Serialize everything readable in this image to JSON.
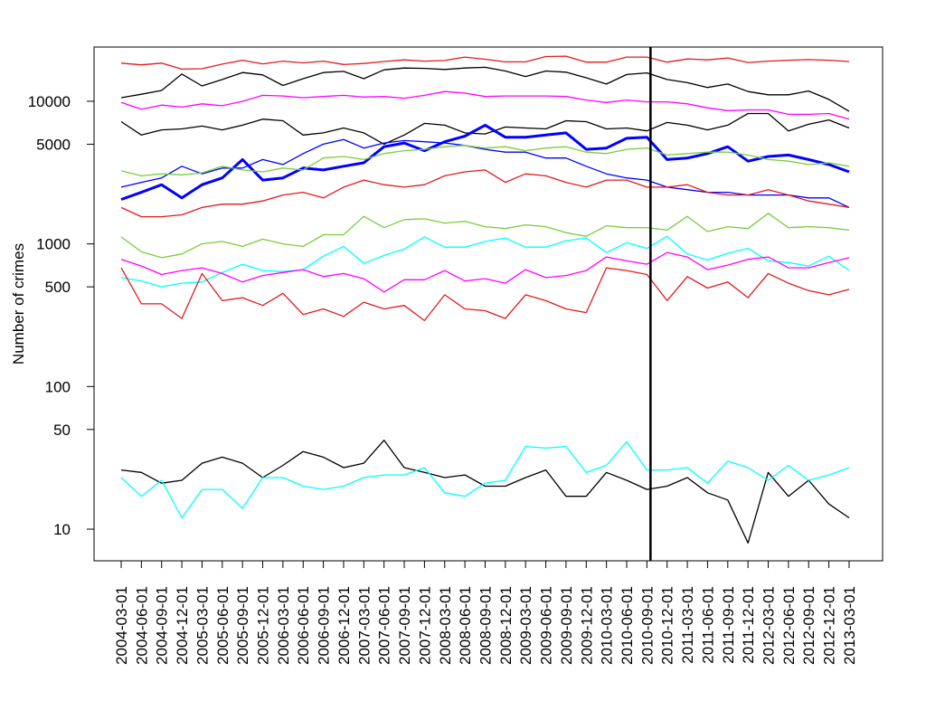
{
  "chart_data": {
    "type": "line",
    "title": "",
    "xlabel": "",
    "ylabel": "Number of crimes",
    "y_scale": "log",
    "ylim": [
      6,
      24000
    ],
    "y_ticks": [
      10,
      50,
      100,
      500,
      1000,
      5000,
      10000
    ],
    "grid": false,
    "legend": "none",
    "vertical_line_at": "2010-09-01",
    "x": [
      "2004-03-01",
      "2004-06-01",
      "2004-09-01",
      "2004-12-01",
      "2005-03-01",
      "2005-06-01",
      "2005-09-01",
      "2005-12-01",
      "2006-03-01",
      "2006-06-01",
      "2006-09-01",
      "2006-12-01",
      "2007-03-01",
      "2007-06-01",
      "2007-09-01",
      "2007-12-01",
      "2008-03-01",
      "2008-06-01",
      "2008-09-01",
      "2008-12-01",
      "2009-03-01",
      "2009-06-01",
      "2009-09-01",
      "2009-12-01",
      "2010-03-01",
      "2010-06-01",
      "2010-09-01",
      "2010-12-01",
      "2011-03-01",
      "2011-06-01",
      "2011-09-01",
      "2011-12-01",
      "2012-03-01",
      "2012-06-01",
      "2012-09-01",
      "2012-12-01",
      "2013-03-01"
    ],
    "series": [
      {
        "color": "#e31a1c",
        "width": 1.3,
        "values": [
          18500,
          18000,
          18500,
          16800,
          16900,
          18200,
          19400,
          18300,
          19100,
          18600,
          19100,
          18100,
          18400,
          19000,
          19500,
          19100,
          19300,
          20400,
          19700,
          18900,
          18900,
          20600,
          20700,
          18800,
          18800,
          20400,
          20400,
          18800,
          19800,
          19500,
          20100,
          18700,
          19100,
          19400,
          19600,
          19400,
          19000
        ]
      },
      {
        "color": "#000000",
        "width": 1.3,
        "values": [
          10600,
          11200,
          11900,
          15500,
          12800,
          14200,
          15900,
          15300,
          12900,
          14400,
          15900,
          16200,
          14400,
          16600,
          17100,
          17000,
          16700,
          17100,
          17300,
          16300,
          14900,
          16300,
          16000,
          14600,
          13200,
          15400,
          15800,
          14200,
          13500,
          12500,
          13200,
          11700,
          11100,
          11100,
          11800,
          10300,
          8500
        ]
      },
      {
        "color": "#ff00ff",
        "width": 1.3,
        "values": [
          9800,
          8800,
          9400,
          9100,
          9600,
          9300,
          10000,
          11000,
          10900,
          10600,
          10800,
          11000,
          10700,
          10800,
          10500,
          11000,
          11700,
          11400,
          10800,
          10900,
          10900,
          10900,
          10800,
          10200,
          9800,
          10200,
          9900,
          9900,
          9600,
          9000,
          8600,
          8700,
          8700,
          8100,
          8100,
          8200,
          7500
        ]
      },
      {
        "color": "#000000",
        "width": 1.3,
        "values": [
          7200,
          5800,
          6300,
          6400,
          6700,
          6300,
          6800,
          7500,
          7300,
          5800,
          6000,
          6500,
          6000,
          5000,
          5800,
          7000,
          6800,
          6000,
          5900,
          6600,
          6500,
          6400,
          7300,
          7200,
          6400,
          6500,
          6200,
          7100,
          6800,
          6300,
          6800,
          8200,
          8200,
          6200,
          6900,
          7400,
          6500
        ]
      },
      {
        "color": "#0000ff",
        "width": 3,
        "values": [
          2050,
          2300,
          2600,
          2100,
          2600,
          2900,
          3900,
          2800,
          2900,
          3400,
          3300,
          3500,
          3700,
          4800,
          5100,
          4500,
          5200,
          5700,
          6800,
          5600,
          5600,
          5800,
          6000,
          4600,
          4700,
          5500,
          5600,
          3900,
          4000,
          4300,
          4800,
          3800,
          4100,
          4200,
          3900,
          3600,
          3200
        ]
      },
      {
        "color": "#0000ff",
        "width": 1.3,
        "values": [
          2500,
          2700,
          2900,
          3500,
          3100,
          3400,
          3400,
          3900,
          3600,
          4300,
          5000,
          5400,
          4700,
          5100,
          5300,
          5200,
          5100,
          4900,
          4600,
          4400,
          4400,
          4000,
          4000,
          3500,
          3100,
          2900,
          2800,
          2500,
          2400,
          2300,
          2300,
          2200,
          2200,
          2200,
          2100,
          2100,
          1800
        ]
      },
      {
        "color": "#7ccd3c",
        "width": 1.3,
        "values": [
          3250,
          3000,
          3100,
          3050,
          3150,
          3500,
          3300,
          3200,
          3400,
          3300,
          4000,
          4100,
          3900,
          4300,
          4500,
          4600,
          4800,
          4900,
          4700,
          4800,
          4500,
          4700,
          4800,
          4400,
          4300,
          4600,
          4700,
          4200,
          4300,
          4400,
          4400,
          4200,
          3900,
          3800,
          3600,
          3700,
          3500
        ]
      },
      {
        "color": "#e31a1c",
        "width": 1.3,
        "values": [
          1800,
          1550,
          1550,
          1600,
          1800,
          1900,
          1900,
          2000,
          2200,
          2300,
          2100,
          2500,
          2800,
          2600,
          2500,
          2600,
          3000,
          3200,
          3300,
          2700,
          3100,
          3000,
          2700,
          2500,
          2800,
          2800,
          2500,
          2500,
          2600,
          2300,
          2200,
          2200,
          2400,
          2200,
          2000,
          1900,
          1800
        ]
      },
      {
        "color": "#7ccd3c",
        "width": 1.3,
        "values": [
          1120,
          880,
          800,
          850,
          1000,
          1040,
          960,
          1080,
          1000,
          960,
          1160,
          1160,
          1560,
          1300,
          1480,
          1500,
          1400,
          1440,
          1320,
          1280,
          1360,
          1320,
          1200,
          1130,
          1340,
          1300,
          1300,
          1250,
          1560,
          1220,
          1320,
          1280,
          1640,
          1300,
          1320,
          1300,
          1250
        ]
      },
      {
        "color": "#00ffff",
        "width": 1.3,
        "values": [
          580,
          550,
          500,
          530,
          540,
          630,
          720,
          650,
          640,
          660,
          820,
          960,
          730,
          830,
          920,
          1120,
          950,
          950,
          1040,
          1100,
          950,
          950,
          1050,
          1100,
          870,
          1020,
          930,
          1130,
          850,
          770,
          860,
          930,
          760,
          740,
          700,
          820,
          650
        ]
      },
      {
        "color": "#ff00ff",
        "width": 1.3,
        "values": [
          780,
          700,
          610,
          650,
          680,
          620,
          540,
          600,
          630,
          660,
          590,
          620,
          570,
          460,
          560,
          560,
          650,
          550,
          570,
          530,
          660,
          580,
          600,
          650,
          810,
          760,
          720,
          870,
          810,
          660,
          710,
          780,
          810,
          680,
          680,
          740,
          800
        ]
      },
      {
        "color": "#e31a1c",
        "width": 1.3,
        "values": [
          680,
          380,
          380,
          300,
          620,
          400,
          420,
          370,
          450,
          320,
          350,
          310,
          390,
          350,
          370,
          290,
          440,
          350,
          340,
          300,
          440,
          400,
          350,
          330,
          680,
          650,
          610,
          400,
          590,
          490,
          540,
          420,
          620,
          530,
          470,
          440,
          480
        ]
      },
      {
        "color": "#000000",
        "width": 1.3,
        "values": [
          26,
          25,
          21,
          22,
          29,
          32,
          29,
          23,
          28,
          35,
          32,
          27,
          29,
          42,
          27,
          25,
          23,
          24,
          20,
          20,
          23,
          26,
          17,
          17,
          25,
          22,
          19,
          20,
          23,
          18,
          16,
          8,
          25,
          17,
          22,
          15,
          12
        ]
      },
      {
        "color": "#00ffff",
        "width": 1.3,
        "values": [
          23,
          17,
          22,
          12,
          19,
          19,
          14,
          23,
          23,
          20,
          19,
          20,
          23,
          24,
          24,
          27,
          18,
          17,
          21,
          22,
          38,
          37,
          38,
          25,
          28,
          41,
          26,
          26,
          27,
          21,
          30,
          27,
          22,
          28,
          22,
          24,
          27
        ]
      }
    ]
  }
}
